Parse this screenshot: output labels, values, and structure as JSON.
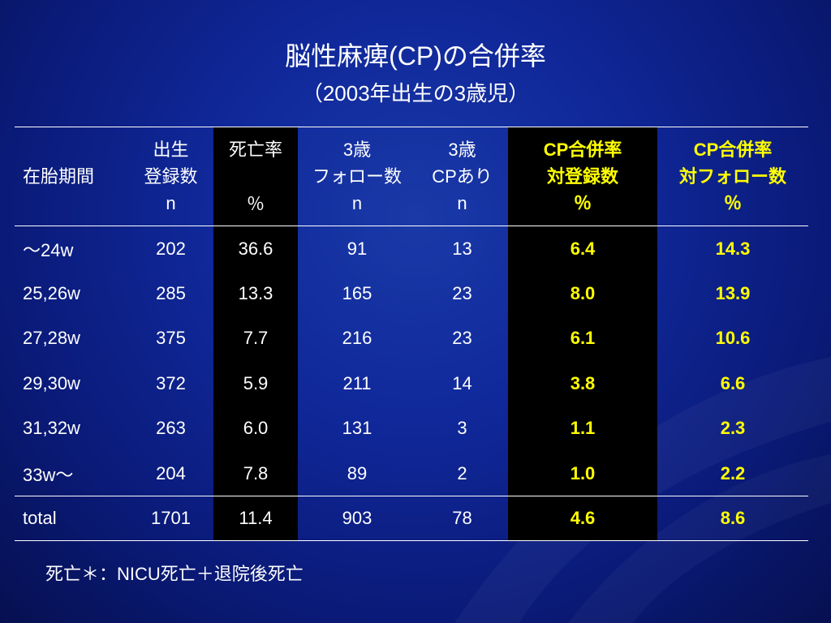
{
  "title": "脳性麻痺(CP)の合併率",
  "subtitle": "（2003年出生の3歳児）",
  "columns": [
    {
      "lines": [
        "",
        "在胎期間",
        ""
      ]
    },
    {
      "lines": [
        "出生",
        "登録数",
        "n"
      ]
    },
    {
      "lines": [
        "死亡率",
        "",
        "％"
      ]
    },
    {
      "lines": [
        "3歳",
        "フォロー数",
        "n"
      ]
    },
    {
      "lines": [
        "3歳",
        "CPあり",
        "n"
      ]
    },
    {
      "lines": [
        "CP合併率",
        "対登録数",
        "％"
      ]
    },
    {
      "lines": [
        "CP合併率",
        "対フォロー数",
        "％"
      ]
    }
  ],
  "chart_data": {
    "type": "table",
    "title": "脳性麻痺(CP)の合併率",
    "subtitle": "（2003年出生の3歳児）",
    "rows": [
      [
        "～24w",
        "202",
        "36.6",
        "91",
        "13",
        "6.4",
        "14.3"
      ],
      [
        "25,26w",
        "285",
        "13.3",
        "165",
        "23",
        "8.0",
        "13.9"
      ],
      [
        "27,28w",
        "375",
        "7.7",
        "216",
        "23",
        "6.1",
        "10.6"
      ],
      [
        "29,30w",
        "372",
        "5.9",
        "211",
        "14",
        "3.8",
        "6.6"
      ],
      [
        "31,32w",
        "263",
        "6.0",
        "131",
        "3",
        "1.1",
        "2.3"
      ],
      [
        "33w～",
        "204",
        "7.8",
        "89",
        "2",
        "1.0",
        "2.2"
      ]
    ],
    "total": [
      "total",
      "1701",
      "11.4",
      "903",
      "78",
      "4.6",
      "8.6"
    ]
  },
  "note": "死亡＊：NICU死亡＋退院後死亡",
  "colors": {
    "background": "#10289a",
    "highlight_column": "#000000",
    "highlight_text": "#ffff00",
    "text": "#ffffff"
  }
}
